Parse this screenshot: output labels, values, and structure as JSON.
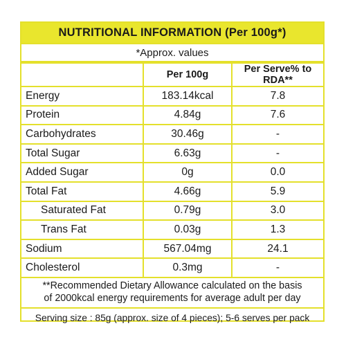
{
  "title": "NUTRITIONAL INFORMATION (Per 100g*)",
  "approx_note": "*Approx. values",
  "columns": {
    "per100": "Per 100g",
    "perServe": "Per Serve% to RDA**"
  },
  "rows": [
    {
      "name": "Energy",
      "per100": "183.14kcal",
      "perServe": "7.8",
      "indent": false
    },
    {
      "name": "Protein",
      "per100": "4.84g",
      "perServe": "7.6",
      "indent": false
    },
    {
      "name": "Carbohydrates",
      "per100": "30.46g",
      "perServe": "-",
      "indent": false
    },
    {
      "name": "Total Sugar",
      "per100": "6.63g",
      "perServe": "-",
      "indent": false
    },
    {
      "name": "Added Sugar",
      "per100": "0g",
      "perServe": "0.0",
      "indent": false
    },
    {
      "name": "Total Fat",
      "per100": "4.66g",
      "perServe": "5.9",
      "indent": false
    },
    {
      "name": "Saturated Fat",
      "per100": "0.79g",
      "perServe": "3.0",
      "indent": true
    },
    {
      "name": "Trans Fat",
      "per100": "0.03g",
      "perServe": "1.3",
      "indent": true
    },
    {
      "name": "Sodium",
      "per100": "567.04mg",
      "perServe": "24.1",
      "indent": false
    },
    {
      "name": "Cholesterol",
      "per100": "0.3mg",
      "perServe": "-",
      "indent": false
    }
  ],
  "footnote_line1": "**Recommended Dietary Allowance calculated on the basis",
  "footnote_line2": "of 2000kcal energy requirements for average adult per day",
  "serving": "Serving size : 85g (approx. size of 4 pieces); 5-6 serves per pack",
  "colors": {
    "accent": "#e9e62d",
    "border": "#e4e02b",
    "text": "#1a1a1a"
  }
}
